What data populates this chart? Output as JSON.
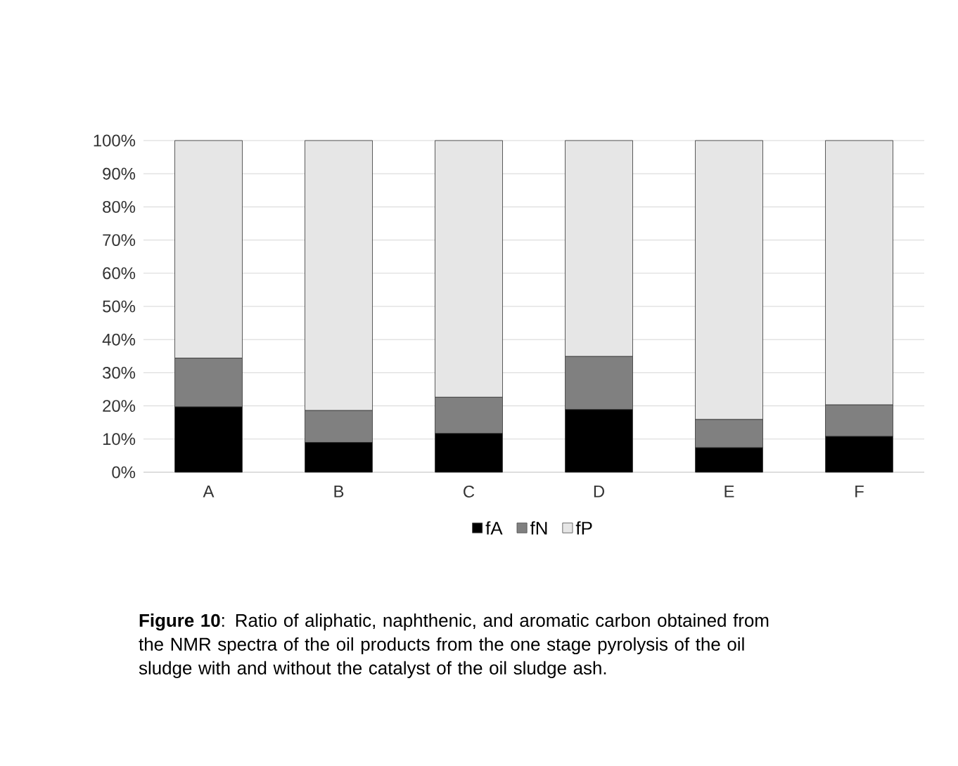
{
  "chart_data": {
    "type": "bar",
    "stacked": true,
    "categories": [
      "A",
      "B",
      "C",
      "D",
      "E",
      "F"
    ],
    "series": [
      {
        "name": "fA",
        "color": "#000000",
        "values": [
          19.7,
          9.0,
          11.7,
          18.9,
          7.4,
          10.8
        ]
      },
      {
        "name": "fN",
        "color": "#808080",
        "values": [
          14.7,
          9.6,
          10.9,
          16.0,
          8.5,
          9.5
        ]
      },
      {
        "name": "fP",
        "color": "#e6e6e6",
        "values": [
          65.6,
          81.4,
          77.4,
          65.1,
          84.1,
          79.7
        ]
      }
    ],
    "ylim": [
      0,
      100
    ],
    "yticks": [
      {
        "value": 0,
        "label": "0%"
      },
      {
        "value": 10,
        "label": "10%"
      },
      {
        "value": 20,
        "label": "20%"
      },
      {
        "value": 30,
        "label": "30%"
      },
      {
        "value": 40,
        "label": "40%"
      },
      {
        "value": 50,
        "label": "50%"
      },
      {
        "value": 60,
        "label": "60%"
      },
      {
        "value": 70,
        "label": "70%"
      },
      {
        "value": 80,
        "label": "80%"
      },
      {
        "value": 90,
        "label": "90%"
      },
      {
        "value": 100,
        "label": "100%"
      }
    ],
    "grid": "y",
    "legend": "bottom",
    "annotations": [
      "**Figure 10**: Ratio of aliphatic, naphthenic, and aromatic carbon obtained from the NMR spectra of the oil products from the one stage pyrolysis of the oil sludge with and without the catalyst of the oil sludge ash."
    ]
  }
}
